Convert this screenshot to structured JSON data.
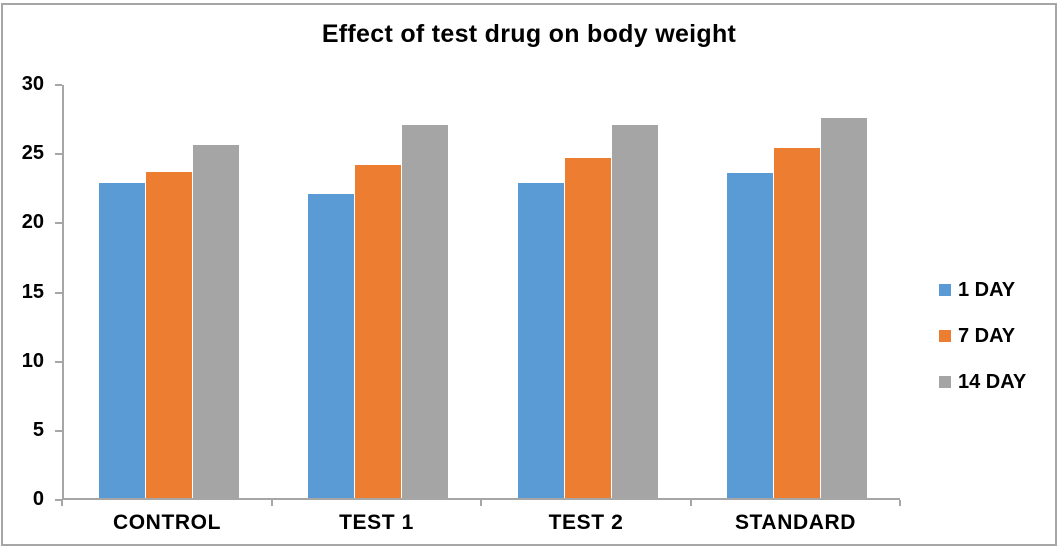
{
  "chart_data": {
    "type": "bar",
    "title": "Effect of test drug on body weight",
    "categories": [
      "CONTROL",
      "TEST 1",
      "TEST 2",
      "STANDARD"
    ],
    "series": [
      {
        "name": "1 DAY",
        "color": "#5b9bd5",
        "values": [
          22.8,
          22.0,
          22.8,
          23.5
        ]
      },
      {
        "name": "7 DAY",
        "color": "#ed7d31",
        "values": [
          23.6,
          24.1,
          24.6,
          25.3
        ]
      },
      {
        "name": "14 DAY",
        "color": "#a5a5a5",
        "values": [
          25.5,
          27.0,
          27.0,
          27.5
        ]
      }
    ],
    "xlabel": "",
    "ylabel": "",
    "ylim": [
      0,
      30
    ],
    "yticks": [
      0,
      5,
      10,
      15,
      20,
      25,
      30
    ],
    "grid": false,
    "legend_position": "right",
    "axis_color": "#a6a6a6",
    "frame_border_color": "#a6a6a6",
    "title_color": "#000000",
    "label_color": "#000000"
  }
}
